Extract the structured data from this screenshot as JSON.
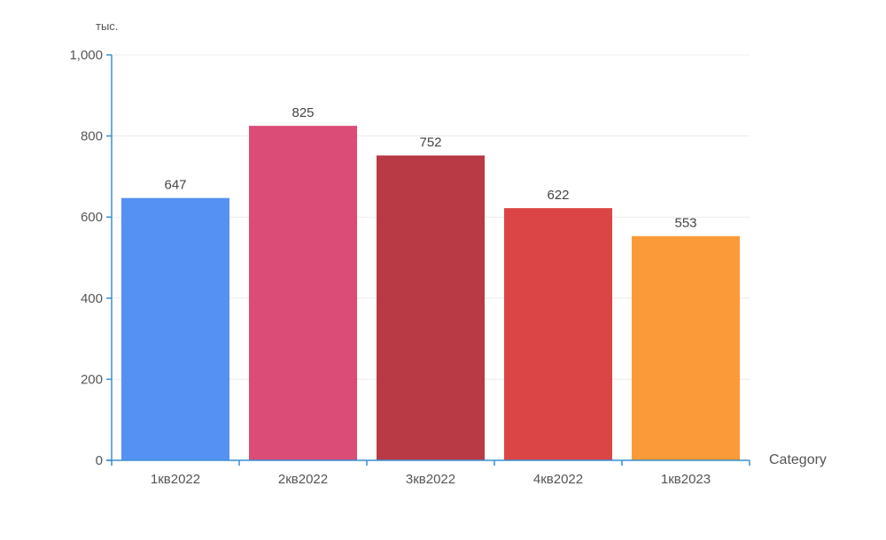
{
  "chart_data": {
    "type": "bar",
    "categories": [
      "1кв2022",
      "2кв2022",
      "3кв2022",
      "4кв2022",
      "1кв2023"
    ],
    "values": [
      647,
      825,
      752,
      622,
      553
    ],
    "colors": [
      "#5591f3",
      "#db4c76",
      "#b93945",
      "#dc4545",
      "#fb9a39"
    ],
    "y_unit": "тыс.",
    "xlabel": "Category",
    "ylim": [
      0,
      1000
    ],
    "y_ticks": [
      0,
      200,
      400,
      600,
      800,
      1000
    ],
    "y_tick_labels": [
      "0",
      "200",
      "400",
      "600",
      "800",
      "1,000"
    ],
    "grid": true,
    "axis_color": "#3a8fd0",
    "grid_color": "#ececec"
  }
}
